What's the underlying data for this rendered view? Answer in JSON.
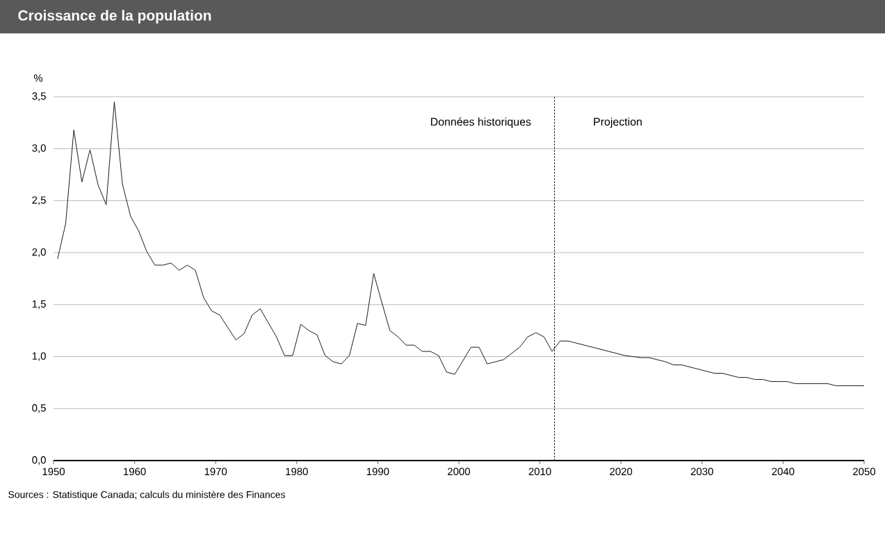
{
  "chart_data": {
    "type": "line",
    "title": "Croissance de la population",
    "ylabel": "%",
    "x": [
      1950.5,
      1951.5,
      1952.5,
      1953.5,
      1954.5,
      1955.5,
      1956.5,
      1957.5,
      1958.5,
      1959.5,
      1960.5,
      1961.5,
      1962.5,
      1963.5,
      1964.5,
      1965.5,
      1966.5,
      1967.5,
      1968.5,
      1969.5,
      1970.5,
      1971.5,
      1972.5,
      1973.5,
      1974.5,
      1975.5,
      1977.5,
      1978.5,
      1979.5,
      1980.5,
      1981.5,
      1982.5,
      1983.5,
      1984.5,
      1985.5,
      1986.5,
      1987.5,
      1988.5,
      1989.5,
      1990.5,
      1991.5,
      1992.5,
      1993.5,
      1994.5,
      1995.5,
      1996.5,
      1997.5,
      1998.5,
      1999.5,
      2000.5,
      2001.5,
      2002.5,
      2003.5,
      2005.5,
      2006.5,
      2007.5,
      2008.5,
      2009.5,
      2010.5,
      2011.5,
      2012.5,
      2013.5,
      2020.5,
      2022.5,
      2023.5,
      2025.5,
      2026.5,
      2027.5,
      2031.5,
      2032.5,
      2034.5,
      2035.5,
      2036.5,
      2037.5,
      2038.5,
      2040.5,
      2041.5,
      2045.5,
      2046.5,
      2050
    ],
    "series": [
      {
        "color": "#1a1a1a",
        "values": [
          1.94,
          2.28,
          3.18,
          2.68,
          2.99,
          2.65,
          2.46,
          3.45,
          2.66,
          2.35,
          2.21,
          2.01,
          1.88,
          1.88,
          1.9,
          1.83,
          1.88,
          1.83,
          1.57,
          1.44,
          1.4,
          1.28,
          1.16,
          1.22,
          1.4,
          1.46,
          1.19,
          1.01,
          1.01,
          1.31,
          1.25,
          1.21,
          1.01,
          0.95,
          0.93,
          1.01,
          1.32,
          1.3,
          1.8,
          1.52,
          1.25,
          1.19,
          1.11,
          1.11,
          1.05,
          1.05,
          1.01,
          0.85,
          0.83,
          0.96,
          1.09,
          1.09,
          0.93,
          0.97,
          1.03,
          1.09,
          1.19,
          1.23,
          1.19,
          1.05,
          1.15,
          1.15,
          1.01,
          0.99,
          0.99,
          0.95,
          0.92,
          0.92,
          0.84,
          0.84,
          0.8,
          0.8,
          0.78,
          0.78,
          0.76,
          0.76,
          0.74,
          0.74,
          0.72,
          0.72
        ]
      }
    ],
    "xlim": [
      1950,
      2050
    ],
    "ylim": [
      0,
      3.5
    ],
    "xticks": [
      1950,
      1960,
      1970,
      1980,
      1990,
      2000,
      2010,
      2020,
      2030,
      2040,
      2050
    ],
    "yticks": [
      {
        "value": 0,
        "label": "0,0"
      },
      {
        "value": 0.5,
        "label": "0,5"
      },
      {
        "value": 1,
        "label": "1,0"
      },
      {
        "value": 1.5,
        "label": "1,5"
      },
      {
        "value": 2,
        "label": "2,0"
      },
      {
        "value": 2.5,
        "label": "2,5"
      },
      {
        "value": 3,
        "label": "3,0"
      },
      {
        "value": 3.5,
        "label": "3,5"
      }
    ],
    "grid": "y",
    "line_style": "solid",
    "marker": "none",
    "ref_lines": [
      {
        "axis": "x",
        "value": 2011.8,
        "color": "#000000",
        "line_style": "dotted"
      }
    ],
    "annotations": [
      "Données historiques",
      "Projection",
      "Sources : Statistique Canada; calculs du ministère des Finances"
    ]
  }
}
